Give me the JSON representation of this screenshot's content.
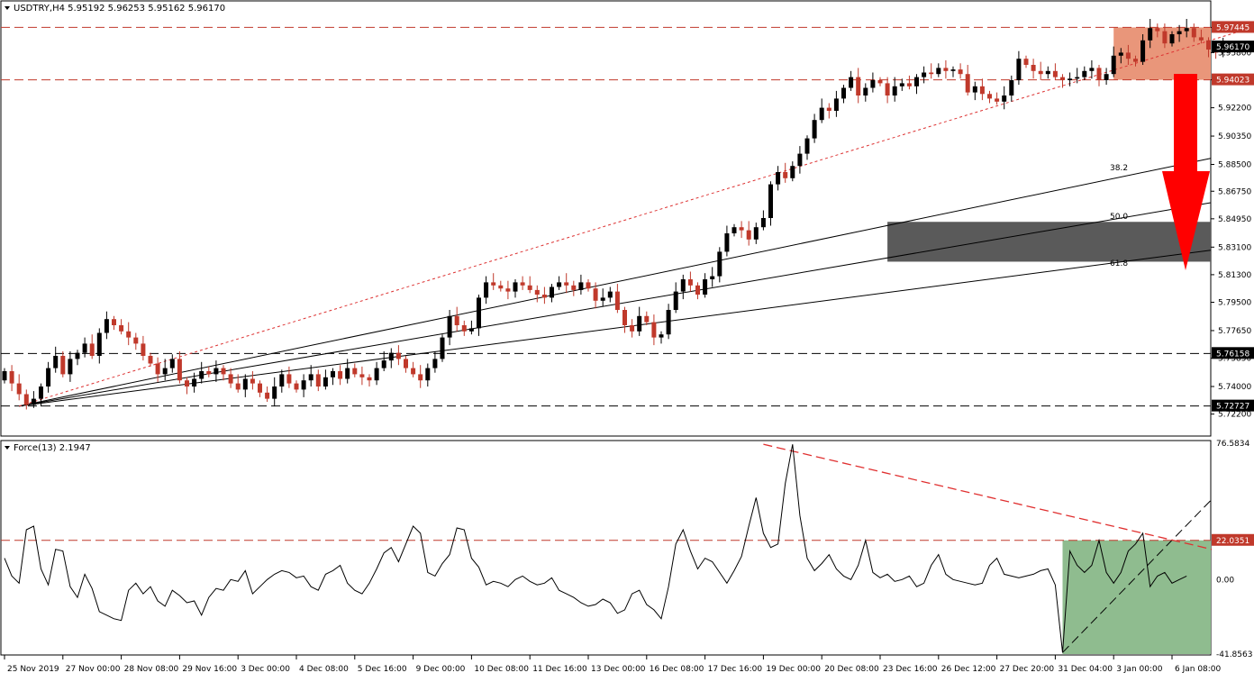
{
  "header": {
    "main_title": "USDTRY,H4  5.95192 5.96253 5.95162 5.96170",
    "force_title": "Force(13) 2.1947"
  },
  "colors": {
    "bull": "#000000",
    "bear": "#c0392b",
    "resistance_zone": "#e9967a",
    "support_zone": "#5a5a5a",
    "force_zone": "#8fbc8f",
    "arrow": "#ff0000",
    "price_tag": "#c0392b"
  },
  "chart_data": [
    {
      "type": "candlestick",
      "symbol": "USDTRY",
      "timeframe": "H4",
      "ylim": [
        5.71,
        5.99
      ],
      "yticks": [
        "5.97445",
        "5.95800",
        "5.94023",
        "5.92200",
        "5.90350",
        "5.88500",
        "5.86750",
        "5.84950",
        "5.83100",
        "5.81300",
        "5.79500",
        "5.77650",
        "5.75850",
        "5.74000",
        "5.72200"
      ],
      "price_labels": [
        {
          "text": "5.97445",
          "value": 5.97445,
          "style": "red"
        },
        {
          "text": "5.96170",
          "value": 5.9617,
          "style": "dark"
        },
        {
          "text": "5.94023",
          "value": 5.94023,
          "style": "red"
        },
        {
          "text": "5.76158",
          "value": 5.76158,
          "style": "dark"
        },
        {
          "text": "5.72727",
          "value": 5.72727,
          "style": "dark"
        }
      ],
      "horizontal_lines": [
        5.97445,
        5.94023,
        5.76158,
        5.72727
      ],
      "resistance_zone": {
        "from": 5.94023,
        "to": 5.97445,
        "start_bar": 152
      },
      "support_zone": {
        "from": 5.8215,
        "to": 5.8475,
        "start_bar": 121
      },
      "fib_fan_labels": [
        "38.2",
        "50.0",
        "61.8"
      ],
      "closes": [
        5.75,
        5.742,
        5.735,
        5.728,
        5.732,
        5.74,
        5.752,
        5.76,
        5.748,
        5.758,
        5.762,
        5.768,
        5.76,
        5.775,
        5.784,
        5.78,
        5.776,
        5.772,
        5.768,
        5.76,
        5.755,
        5.748,
        5.752,
        5.758,
        5.744,
        5.74,
        5.745,
        5.75,
        5.748,
        5.752,
        5.748,
        5.742,
        5.738,
        5.745,
        5.742,
        5.736,
        5.732,
        5.74,
        5.748,
        5.742,
        5.738,
        5.744,
        5.748,
        5.74,
        5.746,
        5.75,
        5.745,
        5.752,
        5.748,
        5.746,
        5.744,
        5.752,
        5.757,
        5.762,
        5.758,
        5.752,
        5.748,
        5.744,
        5.752,
        5.758,
        5.772,
        5.786,
        5.78,
        5.776,
        5.778,
        5.798,
        5.808,
        5.806,
        5.804,
        5.802,
        5.808,
        5.806,
        5.803,
        5.8,
        5.798,
        5.805,
        5.808,
        5.806,
        5.803,
        5.808,
        5.804,
        5.796,
        5.798,
        5.802,
        5.79,
        5.78,
        5.776,
        5.786,
        5.782,
        5.772,
        5.774,
        5.79,
        5.802,
        5.81,
        5.806,
        5.8,
        5.81,
        5.812,
        5.828,
        5.84,
        5.844,
        5.842,
        5.836,
        5.844,
        5.85,
        5.872,
        5.88,
        5.876,
        5.884,
        5.892,
        5.902,
        5.914,
        5.922,
        5.92,
        5.928,
        5.935,
        5.942,
        5.93,
        5.935,
        5.94,
        5.938,
        5.93,
        5.936,
        5.938,
        5.936,
        5.942,
        5.945,
        5.944,
        5.948,
        5.946,
        5.947,
        5.944,
        5.932,
        5.936,
        5.931,
        5.928,
        5.926,
        5.93,
        5.94,
        5.954,
        5.95,
        5.946,
        5.944,
        5.946,
        5.942,
        5.94,
        5.941,
        5.942,
        5.946,
        5.948,
        5.94,
        5.944,
        5.956,
        5.958,
        5.954,
        5.952,
        5.966,
        5.974,
        5.972,
        5.964,
        5.97,
        5.972,
        5.974,
        5.968,
        5.966,
        5.96,
        5.958,
        5.9617
      ]
    },
    {
      "type": "line",
      "name": "Force(13)",
      "ylim": [
        -41.8563,
        76.5834
      ],
      "yticks": [
        "76.5834",
        "22.0351",
        "0.00",
        "-41.8563"
      ],
      "level_lines": [
        22.0351,
        0
      ],
      "values": [
        12,
        2,
        -2,
        28,
        30,
        6,
        -3,
        17,
        16,
        -4,
        -10,
        3,
        -5,
        -18,
        -20,
        -22,
        -23,
        -6,
        -2,
        -8,
        -4,
        -12,
        -15,
        -6,
        -9,
        -13,
        -12,
        -20,
        -10,
        -5,
        -6,
        0,
        -1,
        5,
        -8,
        -4,
        0,
        3,
        5,
        4,
        1,
        2,
        -4,
        -6,
        3,
        5,
        8,
        -2,
        -6,
        -8,
        -2,
        6,
        15,
        18,
        10,
        20,
        30,
        26,
        4,
        2,
        9,
        14,
        29,
        28,
        12,
        7,
        -3,
        -1,
        -2,
        -4,
        0,
        2,
        -1,
        -3,
        -2,
        1,
        -6,
        -8,
        -10,
        -13,
        -15,
        -14,
        -11,
        -13,
        -19,
        -17,
        -8,
        -6,
        -14,
        -17,
        -22,
        -4,
        20,
        28,
        16,
        6,
        12,
        10,
        4,
        -2,
        5,
        13,
        30,
        46,
        26,
        18,
        20,
        54,
        76,
        36,
        12,
        5,
        9,
        14,
        6,
        2,
        0,
        8,
        22,
        4,
        1,
        3,
        -1,
        0,
        2,
        -4,
        -2,
        8,
        14,
        3,
        0,
        -1,
        -2,
        -3,
        -2,
        8,
        12,
        3,
        2,
        1,
        2,
        3,
        5,
        6,
        -3,
        -41,
        16,
        8,
        4,
        8,
        22,
        4,
        -2,
        4,
        16,
        20,
        26,
        -4,
        2,
        4,
        -2,
        0,
        2
      ]
    }
  ],
  "x_axis": {
    "labels": [
      "25 Nov 2019",
      "27 Nov 00:00",
      "28 Nov 08:00",
      "29 Nov 16:00",
      "3 Dec 00:00",
      "4 Dec 08:00",
      "5 Dec 16:00",
      "9 Dec 00:00",
      "10 Dec 08:00",
      "11 Dec 16:00",
      "13 Dec 00:00",
      "16 Dec 08:00",
      "17 Dec 16:00",
      "19 Dec 00:00",
      "20 Dec 08:00",
      "23 Dec 16:00",
      "26 Dec 12:00",
      "27 Dec 20:00",
      "31 Dec 04:00",
      "3 Jan 00:00",
      "6 Jan 08:00"
    ],
    "label_bars": [
      0,
      8,
      16,
      24,
      32,
      40,
      48,
      56,
      64,
      72,
      80,
      88,
      96,
      104,
      112,
      120,
      128,
      136,
      144,
      152,
      160
    ]
  }
}
